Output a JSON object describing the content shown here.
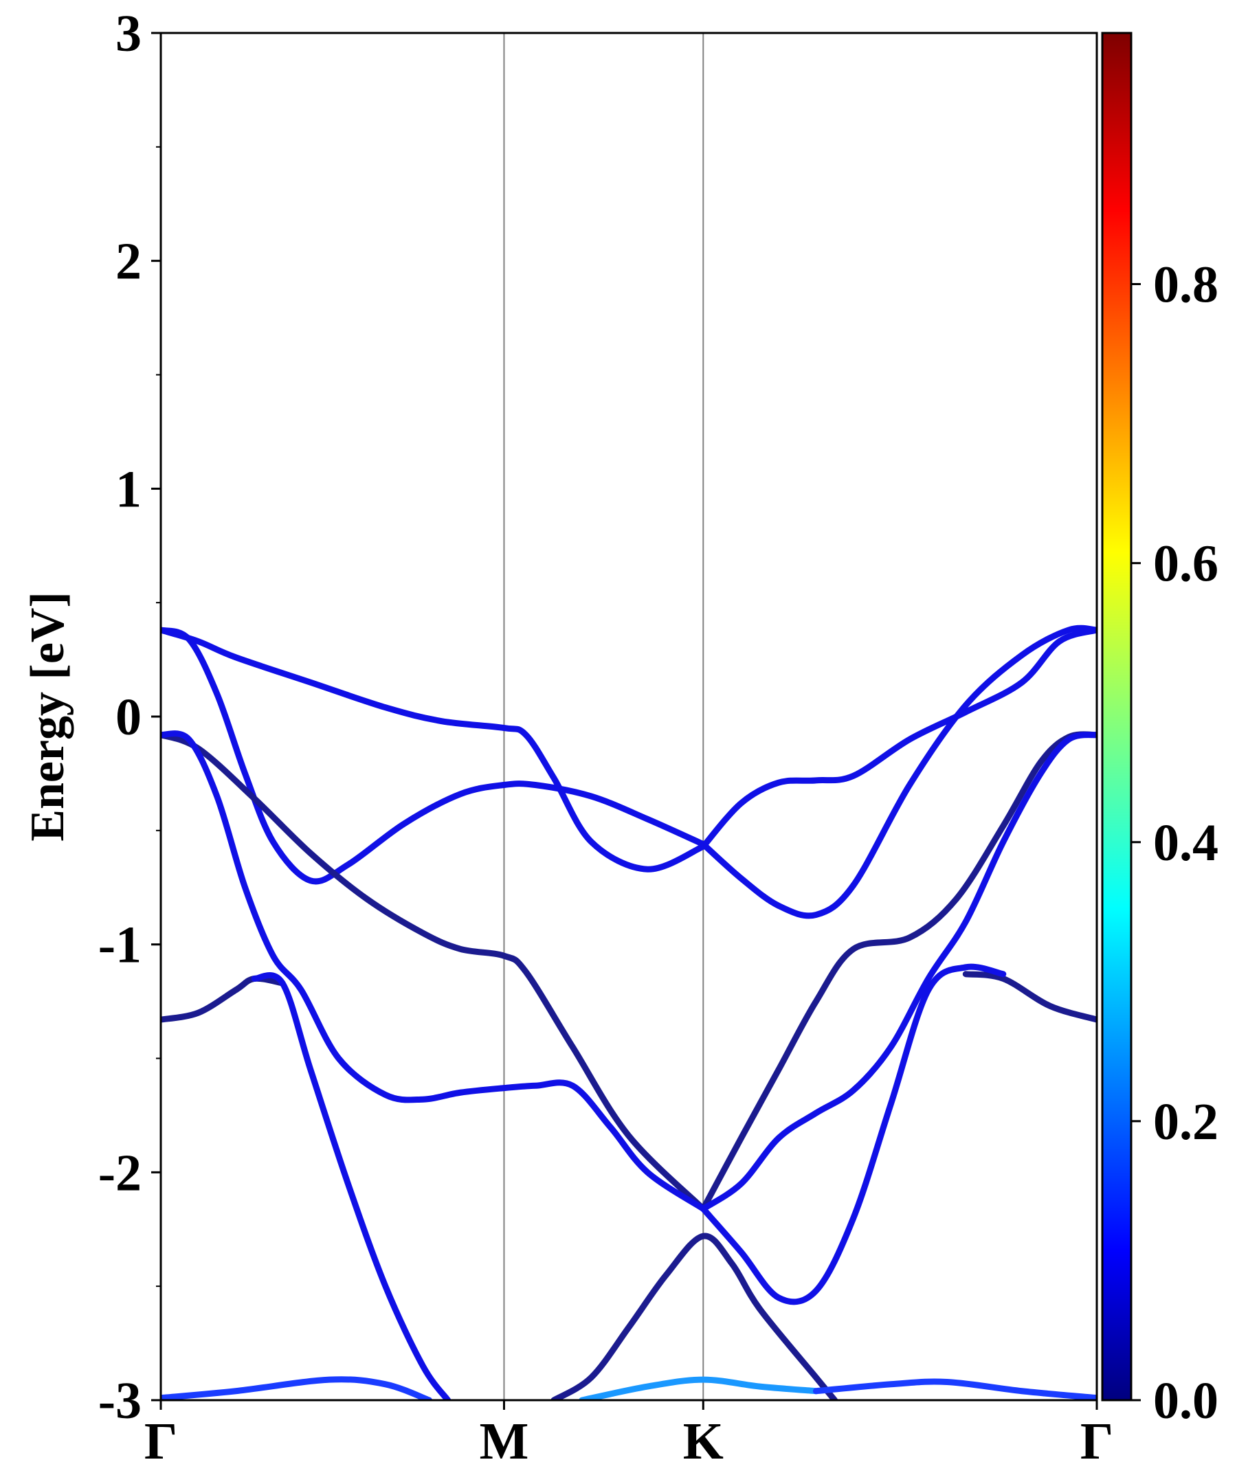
{
  "chart_data": {
    "type": "line",
    "title": "",
    "ylabel": "Energy [eV]",
    "xlabel": "",
    "ylim": [
      -3,
      3
    ],
    "y_ticks": [
      "3",
      "2",
      "1",
      "0",
      "-1",
      "-2",
      "-3"
    ],
    "y_tick_values": [
      3,
      2,
      1,
      0,
      -1,
      -2,
      -3
    ],
    "k_path": [
      "Γ",
      "M",
      "K",
      "Γ"
    ],
    "k_positions": [
      0,
      0.3667,
      0.5795,
      1.0
    ],
    "grid": "vertical lines at high-symmetry points",
    "legend": "none",
    "colorbar": {
      "ticks": [
        "0.0",
        "0.2",
        "0.4",
        "0.6",
        "0.8"
      ],
      "tick_values": [
        0.0,
        0.2,
        0.4,
        0.6,
        0.8
      ],
      "range": [
        0.0,
        0.98
      ],
      "colormap": "jet"
    },
    "colors": {
      "band_dark": "#1b1b8f",
      "band_blue": "#1010e6",
      "band_mid": "#1a3cff",
      "band_light": "#1a98ff",
      "vline": "#808080"
    },
    "series": [
      {
        "weight": 0.1,
        "x": [
          0,
          0.04,
          0.08,
          0.16,
          0.24,
          0.3,
          0.3667,
          0.39,
          0.42,
          0.46,
          0.52,
          0.5795
        ],
        "y": [
          0.38,
          0.33,
          0.26,
          0.15,
          0.04,
          -0.02,
          -0.05,
          -0.08,
          -0.27,
          -0.55,
          -0.67,
          -0.57
        ]
      },
      {
        "weight": 0.1,
        "x": [
          0.5795,
          0.62,
          0.66,
          0.7,
          0.74,
          0.8,
          0.86,
          0.92,
          0.96,
          1.0
        ],
        "y": [
          -0.57,
          -0.38,
          -0.29,
          -0.28,
          -0.26,
          -0.1,
          0.02,
          0.15,
          0.33,
          0.38
        ]
      },
      {
        "weight": 0.12,
        "x": [
          0,
          0.03,
          0.06,
          0.09,
          0.12,
          0.16,
          0.2,
          0.26,
          0.32,
          0.3667,
          0.4,
          0.46,
          0.52,
          0.5795
        ],
        "y": [
          0.38,
          0.34,
          0.1,
          -0.25,
          -0.55,
          -0.72,
          -0.65,
          -0.47,
          -0.34,
          -0.3,
          -0.3,
          -0.35,
          -0.45,
          -0.56
        ]
      },
      {
        "weight": 0.12,
        "x": [
          0.5795,
          0.62,
          0.66,
          0.7,
          0.74,
          0.8,
          0.86,
          0.92,
          0.97,
          1.0
        ],
        "y": [
          -0.56,
          -0.71,
          -0.83,
          -0.87,
          -0.74,
          -0.3,
          0.05,
          0.27,
          0.38,
          0.38
        ]
      },
      {
        "weight": 0.03,
        "x": [
          0,
          0.04,
          0.1,
          0.16,
          0.22,
          0.28,
          0.32,
          0.3667,
          0.39,
          0.44,
          0.5,
          0.5795
        ],
        "y": [
          -0.08,
          -0.14,
          -0.36,
          -0.6,
          -0.8,
          -0.95,
          -1.02,
          -1.05,
          -1.12,
          -1.45,
          -1.84,
          -2.16
        ]
      },
      {
        "weight": 0.03,
        "x": [
          0.5795,
          0.62,
          0.66,
          0.7,
          0.74,
          0.8,
          0.85,
          0.9,
          0.94,
          0.97,
          1.0
        ],
        "y": [
          -2.16,
          -1.85,
          -1.55,
          -1.25,
          -1.02,
          -0.97,
          -0.8,
          -0.48,
          -0.2,
          -0.09,
          -0.08
        ]
      },
      {
        "weight": 0.05,
        "x": [
          0,
          0.03,
          0.06,
          0.09,
          0.12,
          0.15,
          0.19,
          0.24,
          0.28,
          0.32,
          0.3667,
          0.4,
          0.44,
          0.48,
          0.52,
          0.5795
        ],
        "y": [
          -0.08,
          -0.1,
          -0.35,
          -0.75,
          -1.05,
          -1.2,
          -1.5,
          -1.66,
          -1.68,
          -1.65,
          -1.63,
          -1.62,
          -1.62,
          -1.8,
          -2.0,
          -2.16
        ]
      },
      {
        "weight": 0.05,
        "x": [
          0.5795,
          0.62,
          0.66,
          0.7,
          0.74,
          0.78,
          0.82,
          0.86,
          0.9,
          0.94,
          0.97,
          1.0
        ],
        "y": [
          -2.16,
          -2.05,
          -1.85,
          -1.74,
          -1.64,
          -1.45,
          -1.15,
          -0.9,
          -0.55,
          -0.25,
          -0.1,
          -0.08
        ]
      },
      {
        "weight": 0.02,
        "x": [
          0,
          0.04,
          0.08,
          0.1,
          0.13
        ],
        "y": [
          -1.33,
          -1.3,
          -1.2,
          -1.15,
          -1.17
        ]
      },
      {
        "weight": 0.02,
        "x": [
          0.86,
          0.9,
          0.95,
          1.0
        ],
        "y": [
          -1.13,
          -1.15,
          -1.27,
          -1.33
        ]
      },
      {
        "weight": 0.08,
        "x": [
          0.1,
          0.13,
          0.16,
          0.2,
          0.24,
          0.28,
          0.3067
        ],
        "y": [
          -1.15,
          -1.17,
          -1.55,
          -2.05,
          -2.5,
          -2.85,
          -3.0
        ]
      },
      {
        "weight": 0.08,
        "x": [
          0.5795,
          0.62,
          0.66,
          0.7,
          0.74,
          0.78,
          0.82,
          0.86,
          0.9
        ],
        "y": [
          -2.16,
          -2.35,
          -2.55,
          -2.52,
          -2.2,
          -1.7,
          -1.2,
          -1.1,
          -1.13
        ]
      },
      {
        "weight": 0.04,
        "x": [
          0.42,
          0.46,
          0.5,
          0.54,
          0.5795,
          0.61,
          0.64,
          0.7,
          0.72
        ],
        "y": [
          -3.0,
          -2.9,
          -2.68,
          -2.45,
          -2.28,
          -2.4,
          -2.6,
          -2.9,
          -3.0
        ]
      },
      {
        "weight": 0.15,
        "x": [
          0,
          0.08,
          0.18,
          0.24,
          0.2867
        ],
        "y": [
          -2.99,
          -2.96,
          -2.91,
          -2.93,
          -3.0
        ]
      },
      {
        "weight": 0.25,
        "x": [
          0.45,
          0.52,
          0.5795,
          0.64,
          0.7
        ],
        "y": [
          -3.0,
          -2.94,
          -2.91,
          -2.94,
          -2.96
        ]
      },
      {
        "weight": 0.18,
        "x": [
          0.7,
          0.78,
          0.84,
          0.92,
          1.0
        ],
        "y": [
          -2.96,
          -2.93,
          -2.92,
          -2.96,
          -2.99
        ]
      }
    ]
  }
}
